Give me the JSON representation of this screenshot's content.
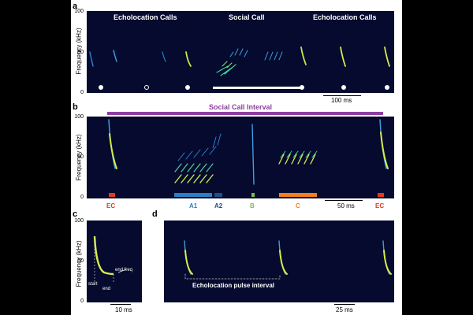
{
  "panels": {
    "a": {
      "label": "a",
      "y_title": "Frequency (kHz)",
      "y_ticks": [
        "100",
        "50",
        "0"
      ],
      "headers": [
        "Echolocation Calls",
        "Social Call",
        "Echolocation Calls"
      ],
      "scale_bar": "100 ms"
    },
    "b": {
      "label": "b",
      "interval_label": "Social Call Interval",
      "y_title": "Frequency (kHz)",
      "y_ticks": [
        "100",
        "50",
        "0"
      ],
      "scale_bar": "50 ms",
      "segments": [
        {
          "name": "EC",
          "color": "#e03a1e"
        },
        {
          "name": "A1",
          "color": "#2a7fc4"
        },
        {
          "name": "A2",
          "color": "#1b4f8a"
        },
        {
          "name": "B",
          "color": "#7ac143"
        },
        {
          "name": "C",
          "color": "#f07f1e"
        },
        {
          "name": "EC",
          "color": "#e03a1e"
        }
      ],
      "interval_color": "#8e3f9e"
    },
    "c": {
      "label": "c",
      "y_title": "Frequency (kHz)",
      "y_ticks": [
        "100",
        "50",
        "0"
      ],
      "annotations": {
        "start": "start",
        "end": "end",
        "end_freq": "end freq"
      },
      "scale_bar": "10 ms"
    },
    "d": {
      "label": "d",
      "interval_label": "Echolocation pulse interval",
      "scale_bar": "25 ms"
    }
  }
}
